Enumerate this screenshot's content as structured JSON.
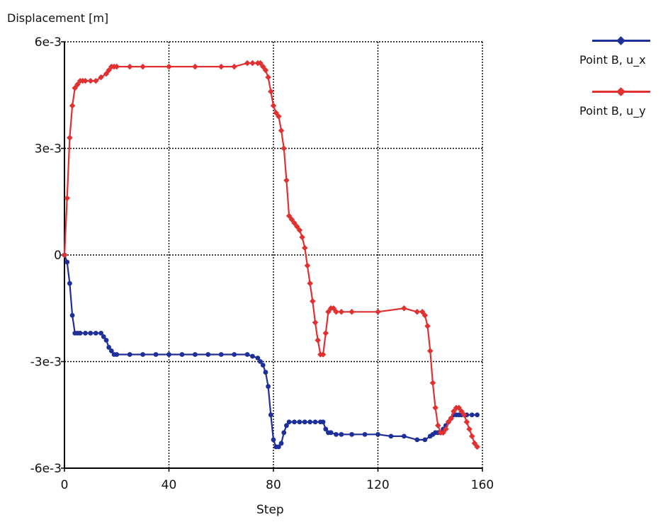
{
  "chart_data": {
    "type": "line",
    "ylabel": "Displacement [m]",
    "xlabel": "Step",
    "xlim": [
      0,
      160
    ],
    "ylim": [
      -0.006,
      0.006
    ],
    "x_ticks": [
      0,
      40,
      80,
      120,
      160
    ],
    "x_tick_labels": [
      "0",
      "40",
      "80",
      "120",
      "160"
    ],
    "y_ticks": [
      -0.006,
      -0.003,
      0,
      0.003,
      0.006
    ],
    "y_tick_labels": [
      "-6e-3",
      "-3e-3",
      "0",
      "3e-3",
      "6e-3"
    ],
    "grid": true,
    "legend_position": "right",
    "series": [
      {
        "name": "Point B, u_x",
        "color": "#1f2f9a",
        "x": [
          0,
          1,
          2,
          3,
          4,
          5,
          6,
          8,
          10,
          12,
          14,
          15,
          16,
          17,
          18,
          19,
          20,
          25,
          30,
          35,
          40,
          45,
          50,
          55,
          60,
          65,
          70,
          72,
          74,
          75,
          76,
          77,
          78,
          79,
          80,
          81,
          82,
          83,
          84,
          85,
          86,
          88,
          90,
          92,
          94,
          96,
          98,
          99,
          100,
          101,
          102,
          104,
          106,
          110,
          115,
          120,
          125,
          130,
          135,
          138,
          140,
          141,
          142,
          143,
          144,
          145,
          146,
          147,
          148,
          149,
          150,
          151,
          152,
          154,
          156,
          158
        ],
        "y": [
          0,
          -0.0002,
          -0.0008,
          -0.0017,
          -0.0022,
          -0.0022,
          -0.0022,
          -0.0022,
          -0.0022,
          -0.0022,
          -0.0022,
          -0.0023,
          -0.0024,
          -0.0026,
          -0.0027,
          -0.0028,
          -0.0028,
          -0.0028,
          -0.0028,
          -0.0028,
          -0.0028,
          -0.0028,
          -0.0028,
          -0.0028,
          -0.0028,
          -0.0028,
          -0.0028,
          -0.00285,
          -0.0029,
          -0.003,
          -0.0031,
          -0.0033,
          -0.0037,
          -0.0045,
          -0.0052,
          -0.0054,
          -0.0054,
          -0.0053,
          -0.005,
          -0.0048,
          -0.0047,
          -0.0047,
          -0.0047,
          -0.0047,
          -0.0047,
          -0.0047,
          -0.0047,
          -0.0047,
          -0.0049,
          -0.005,
          -0.005,
          -0.00505,
          -0.00505,
          -0.00505,
          -0.00505,
          -0.00505,
          -0.0051,
          -0.0051,
          -0.0052,
          -0.0052,
          -0.0051,
          -0.00505,
          -0.005,
          -0.005,
          -0.005,
          -0.0049,
          -0.0048,
          -0.0047,
          -0.0046,
          -0.0045,
          -0.0045,
          -0.0045,
          -0.0045,
          -0.0045,
          -0.0045,
          -0.0045
        ]
      },
      {
        "name": "Point B, u_y",
        "color": "#e03030",
        "x": [
          0,
          1,
          2,
          3,
          4,
          5,
          6,
          7,
          8,
          10,
          12,
          14,
          16,
          17,
          18,
          19,
          20,
          25,
          30,
          40,
          50,
          60,
          65,
          70,
          72,
          74,
          75,
          76,
          77,
          78,
          79,
          80,
          81,
          82,
          83,
          84,
          85,
          86,
          87,
          88,
          89,
          90,
          91,
          92,
          93,
          94,
          95,
          96,
          97,
          98,
          99,
          100,
          101,
          102,
          103,
          104,
          106,
          110,
          120,
          130,
          135,
          137,
          138,
          139,
          140,
          141,
          142,
          143,
          144,
          145,
          146,
          147,
          148,
          149,
          150,
          151,
          152,
          153,
          154,
          155,
          156,
          157,
          158
        ],
        "y": [
          0,
          0.0016,
          0.0033,
          0.0042,
          0.0047,
          0.0048,
          0.0049,
          0.0049,
          0.0049,
          0.0049,
          0.0049,
          0.005,
          0.0051,
          0.0052,
          0.0053,
          0.0053,
          0.0053,
          0.0053,
          0.0053,
          0.0053,
          0.0053,
          0.0053,
          0.0053,
          0.0054,
          0.0054,
          0.0054,
          0.0054,
          0.0053,
          0.0052,
          0.005,
          0.0046,
          0.0042,
          0.004,
          0.0039,
          0.0035,
          0.003,
          0.0021,
          0.0011,
          0.001,
          0.0009,
          0.0008,
          0.0007,
          0.0005,
          0.0002,
          -0.0003,
          -0.0008,
          -0.0013,
          -0.0019,
          -0.0024,
          -0.0028,
          -0.0028,
          -0.0022,
          -0.0016,
          -0.0015,
          -0.0015,
          -0.0016,
          -0.0016,
          -0.0016,
          -0.0016,
          -0.0015,
          -0.0016,
          -0.0016,
          -0.0017,
          -0.002,
          -0.0027,
          -0.0036,
          -0.0043,
          -0.0048,
          -0.005,
          -0.005,
          -0.0049,
          -0.0047,
          -0.0046,
          -0.0044,
          -0.0043,
          -0.0043,
          -0.0044,
          -0.0045,
          -0.0047,
          -0.0049,
          -0.0051,
          -0.0053,
          -0.0054
        ]
      }
    ]
  }
}
